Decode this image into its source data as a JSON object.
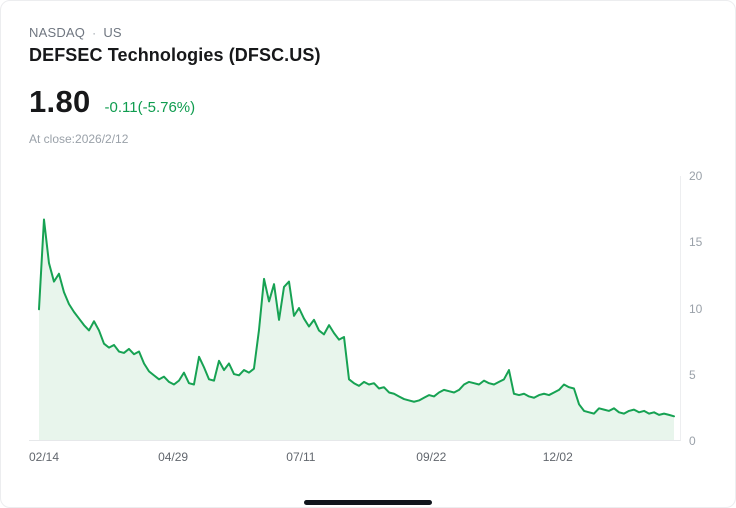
{
  "header": {
    "exchange": "NASDAQ",
    "separator": "·",
    "region": "US",
    "title": "DEFSEC Technologies (DFSC.US)"
  },
  "quote": {
    "price": "1.80",
    "change": "-0.11(-5.76%)",
    "at_close": "At close:2026/2/12",
    "change_color": "#0f9c4f"
  },
  "chart_data": {
    "type": "area",
    "series_name": "DFSC.US price",
    "title": "",
    "xlabel": "",
    "ylabel": "",
    "ylim": [
      0,
      20
    ],
    "y_ticks": [
      0,
      5,
      10,
      15,
      20
    ],
    "grid": "off",
    "legend": "none",
    "line_color": "#17a253",
    "fill_color": "#e8f5ec",
    "x_ticks": [
      {
        "label": "02/14",
        "pos": 0.023
      },
      {
        "label": "04/29",
        "pos": 0.221
      },
      {
        "label": "07/11",
        "pos": 0.417
      },
      {
        "label": "09/22",
        "pos": 0.617
      },
      {
        "label": "12/02",
        "pos": 0.811
      }
    ],
    "values": [
      9.9,
      16.7,
      13.4,
      12.0,
      12.6,
      11.2,
      10.3,
      9.7,
      9.2,
      8.7,
      8.3,
      9.0,
      8.3,
      7.3,
      7.0,
      7.2,
      6.7,
      6.6,
      6.9,
      6.5,
      6.7,
      5.8,
      5.2,
      4.9,
      4.6,
      4.8,
      4.4,
      4.2,
      4.5,
      5.1,
      4.3,
      4.2,
      6.3,
      5.5,
      4.6,
      4.5,
      6.0,
      5.3,
      5.8,
      5.0,
      4.9,
      5.3,
      5.1,
      5.4,
      8.3,
      12.2,
      10.5,
      11.8,
      9.1,
      11.6,
      12.0,
      9.4,
      10.0,
      9.2,
      8.6,
      9.1,
      8.3,
      8.0,
      8.7,
      8.1,
      7.6,
      7.8,
      4.6,
      4.3,
      4.1,
      4.4,
      4.2,
      4.3,
      3.9,
      4.0,
      3.6,
      3.5,
      3.3,
      3.1,
      3.0,
      2.9,
      3.0,
      3.2,
      3.4,
      3.3,
      3.6,
      3.8,
      3.7,
      3.6,
      3.8,
      4.2,
      4.4,
      4.3,
      4.2,
      4.5,
      4.3,
      4.2,
      4.4,
      4.6,
      5.3,
      3.5,
      3.4,
      3.5,
      3.3,
      3.2,
      3.4,
      3.5,
      3.4,
      3.6,
      3.8,
      4.2,
      4.0,
      3.9,
      2.7,
      2.2,
      2.1,
      2.0,
      2.4,
      2.3,
      2.2,
      2.4,
      2.1,
      2.0,
      2.2,
      2.3,
      2.1,
      2.2,
      2.0,
      2.1,
      1.9,
      2.0,
      1.9,
      1.8
    ]
  }
}
